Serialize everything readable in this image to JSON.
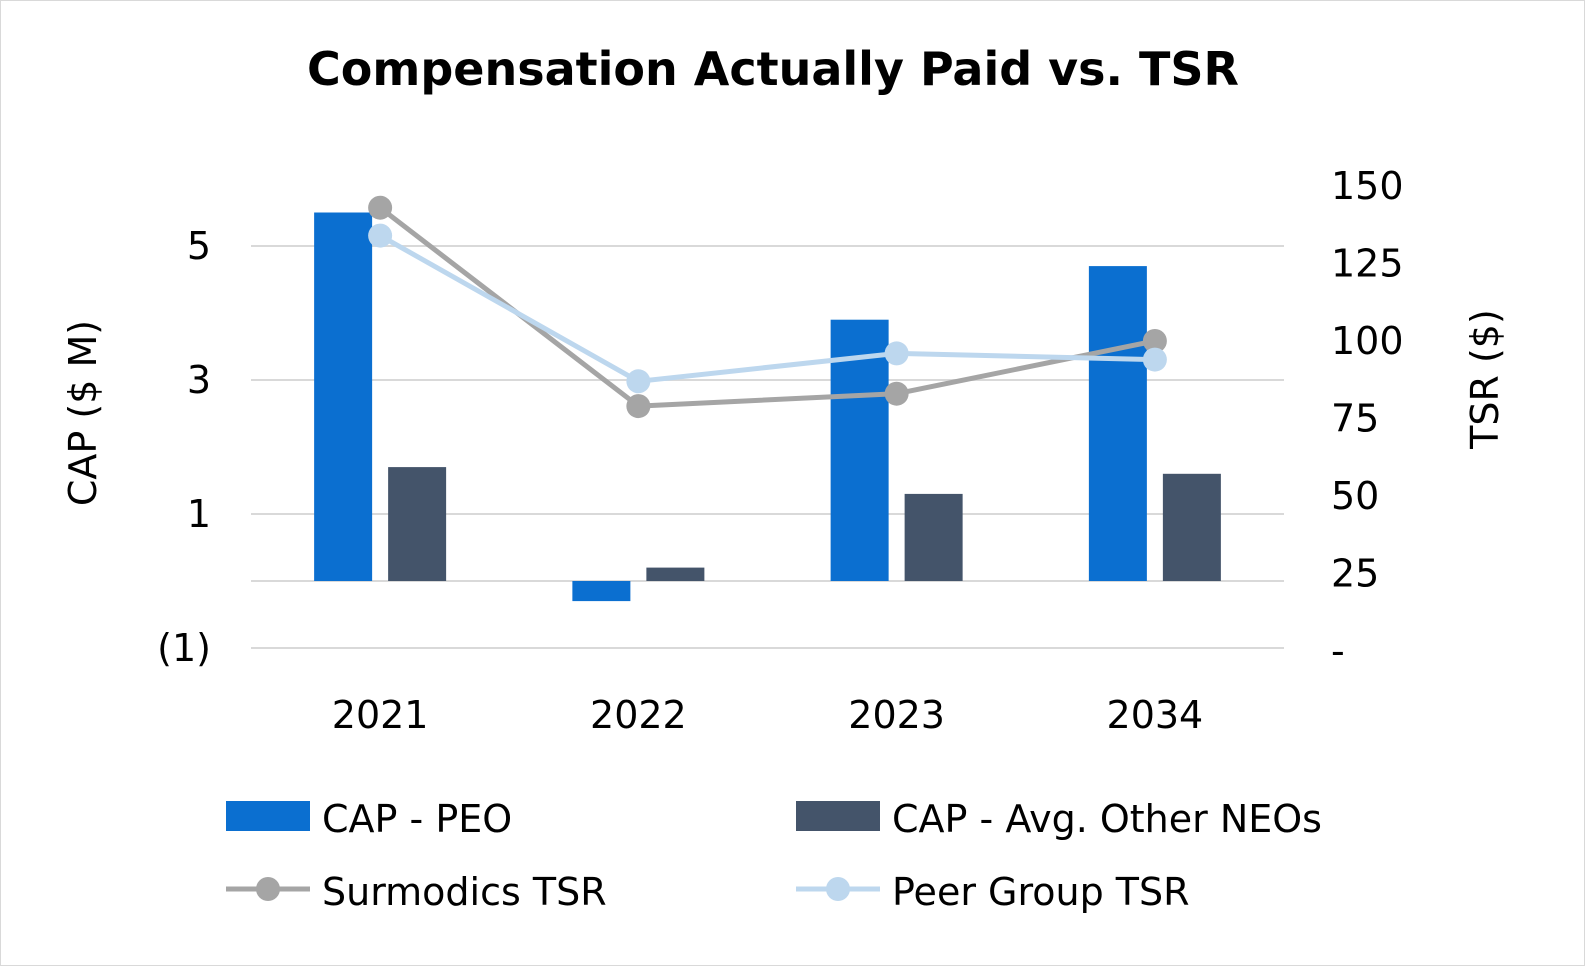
{
  "chart_data": {
    "type": "bar",
    "title": "Compensation Actually Paid vs. TSR",
    "categories": [
      "2021",
      "2022",
      "2023",
      "2034"
    ],
    "y_left": {
      "label": "CAP ($ M)",
      "ylim": [
        -1,
        6
      ],
      "ticks": [
        -1,
        1,
        3,
        5
      ],
      "tick_labels": [
        "(1)",
        "1",
        "3",
        "5"
      ]
    },
    "y_right": {
      "label": "TSR ($)",
      "ylim": [
        0,
        150
      ],
      "ticks": [
        0,
        25,
        50,
        75,
        100,
        125,
        150
      ],
      "tick_labels": [
        "-",
        "25",
        "50",
        "75",
        "100",
        "125",
        "150"
      ]
    },
    "gridlines": [
      -1,
      0,
      1,
      3,
      5
    ],
    "series": [
      {
        "name": "CAP - PEO",
        "type": "bar",
        "axis": "left",
        "color": "#0b6fd0",
        "values": [
          5.5,
          -0.3,
          3.9,
          4.7
        ]
      },
      {
        "name": "CAP - Avg. Other NEOs",
        "type": "bar",
        "axis": "left",
        "color": "#44546a",
        "values": [
          1.7,
          0.2,
          1.3,
          1.6
        ]
      },
      {
        "name": "Surmodics TSR",
        "type": "line",
        "axis": "right",
        "color": "#a5a5a5",
        "values": [
          143,
          79,
          83,
          100
        ]
      },
      {
        "name": "Peer Group TSR",
        "type": "line",
        "axis": "right",
        "color": "#bdd7ee",
        "values": [
          134,
          87,
          96,
          94
        ]
      }
    ],
    "legend": {
      "position": "bottom",
      "items": [
        "CAP - PEO",
        "CAP - Avg. Other NEOs",
        "Surmodics TSR",
        "Peer Group TSR"
      ]
    }
  }
}
